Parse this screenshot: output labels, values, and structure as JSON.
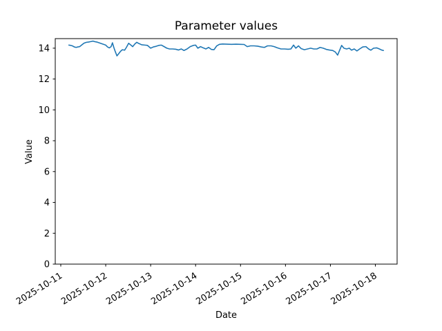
{
  "figure": {
    "background": "#ffffff"
  },
  "chart_data": {
    "type": "line",
    "title": "Parameter values",
    "xlabel": "Date",
    "ylabel": "Value",
    "line_color": "#1f77b4",
    "axis_color": "#000000",
    "grid": false,
    "legend_position": "none",
    "x_tick_labels": [
      "2025-10-11",
      "2025-10-12",
      "2025-10-13",
      "2025-10-14",
      "2025-10-15",
      "2025-10-16",
      "2025-10-17",
      "2025-10-18"
    ],
    "x_tick_days": [
      0,
      1,
      2,
      3,
      4,
      5,
      6,
      7
    ],
    "y_ticks": [
      0,
      2,
      4,
      6,
      8,
      10,
      12,
      14
    ],
    "xlim_days": [
      -0.123,
      7.484
    ],
    "ylim": [
      0,
      14.62
    ],
    "series": [
      {
        "name": "parameter-values",
        "points": [
          [
            0.18,
            14.2
          ],
          [
            0.22,
            14.18
          ],
          [
            0.26,
            14.15
          ],
          [
            0.3,
            14.08
          ],
          [
            0.34,
            14.05
          ],
          [
            0.38,
            14.08
          ],
          [
            0.42,
            14.1
          ],
          [
            0.47,
            14.22
          ],
          [
            0.52,
            14.33
          ],
          [
            0.57,
            14.38
          ],
          [
            0.62,
            14.4
          ],
          [
            0.67,
            14.43
          ],
          [
            0.72,
            14.46
          ],
          [
            0.76,
            14.42
          ],
          [
            0.8,
            14.4
          ],
          [
            0.85,
            14.35
          ],
          [
            0.9,
            14.3
          ],
          [
            0.95,
            14.25
          ],
          [
            1.0,
            14.2
          ],
          [
            1.04,
            14.08
          ],
          [
            1.08,
            14.02
          ],
          [
            1.12,
            14.1
          ],
          [
            1.15,
            14.35
          ],
          [
            1.18,
            14.05
          ],
          [
            1.21,
            13.8
          ],
          [
            1.25,
            13.5
          ],
          [
            1.29,
            13.65
          ],
          [
            1.33,
            13.8
          ],
          [
            1.37,
            13.9
          ],
          [
            1.42,
            13.87
          ],
          [
            1.46,
            14.05
          ],
          [
            1.51,
            14.32
          ],
          [
            1.56,
            14.2
          ],
          [
            1.6,
            14.1
          ],
          [
            1.65,
            14.28
          ],
          [
            1.69,
            14.38
          ],
          [
            1.74,
            14.3
          ],
          [
            1.8,
            14.22
          ],
          [
            1.87,
            14.2
          ],
          [
            1.93,
            14.18
          ],
          [
            2.0,
            14.0
          ],
          [
            2.06,
            14.08
          ],
          [
            2.12,
            14.12
          ],
          [
            2.18,
            14.18
          ],
          [
            2.24,
            14.2
          ],
          [
            2.3,
            14.1
          ],
          [
            2.36,
            14.0
          ],
          [
            2.42,
            13.95
          ],
          [
            2.49,
            13.95
          ],
          [
            2.56,
            13.93
          ],
          [
            2.62,
            13.88
          ],
          [
            2.68,
            13.95
          ],
          [
            2.74,
            13.85
          ],
          [
            2.81,
            13.95
          ],
          [
            2.88,
            14.1
          ],
          [
            2.95,
            14.18
          ],
          [
            3.0,
            14.2
          ],
          [
            3.05,
            14.0
          ],
          [
            3.11,
            14.1
          ],
          [
            3.17,
            14.02
          ],
          [
            3.23,
            13.95
          ],
          [
            3.29,
            14.05
          ],
          [
            3.35,
            13.92
          ],
          [
            3.41,
            13.9
          ],
          [
            3.47,
            14.15
          ],
          [
            3.53,
            14.25
          ],
          [
            3.6,
            14.27
          ],
          [
            3.7,
            14.26
          ],
          [
            3.8,
            14.25
          ],
          [
            3.9,
            14.26
          ],
          [
            4.0,
            14.25
          ],
          [
            4.08,
            14.24
          ],
          [
            4.15,
            14.1
          ],
          [
            4.22,
            14.15
          ],
          [
            4.3,
            14.15
          ],
          [
            4.38,
            14.13
          ],
          [
            4.46,
            14.08
          ],
          [
            4.53,
            14.05
          ],
          [
            4.6,
            14.15
          ],
          [
            4.68,
            14.15
          ],
          [
            4.75,
            14.1
          ],
          [
            4.82,
            14.02
          ],
          [
            4.9,
            13.95
          ],
          [
            4.98,
            13.95
          ],
          [
            5.06,
            13.93
          ],
          [
            5.12,
            13.95
          ],
          [
            5.18,
            14.2
          ],
          [
            5.23,
            14.0
          ],
          [
            5.29,
            14.15
          ],
          [
            5.35,
            13.97
          ],
          [
            5.42,
            13.9
          ],
          [
            5.49,
            13.95
          ],
          [
            5.56,
            14.0
          ],
          [
            5.63,
            13.95
          ],
          [
            5.7,
            13.95
          ],
          [
            5.77,
            14.05
          ],
          [
            5.84,
            14.0
          ],
          [
            5.91,
            13.92
          ],
          [
            5.98,
            13.88
          ],
          [
            6.05,
            13.85
          ],
          [
            6.11,
            13.75
          ],
          [
            6.16,
            13.55
          ],
          [
            6.21,
            13.9
          ],
          [
            6.25,
            14.18
          ],
          [
            6.3,
            14.0
          ],
          [
            6.36,
            13.95
          ],
          [
            6.42,
            14.0
          ],
          [
            6.47,
            13.87
          ],
          [
            6.53,
            13.95
          ],
          [
            6.59,
            13.82
          ],
          [
            6.65,
            13.95
          ],
          [
            6.72,
            14.08
          ],
          [
            6.79,
            14.1
          ],
          [
            6.85,
            13.95
          ],
          [
            6.9,
            13.87
          ],
          [
            6.96,
            14.0
          ],
          [
            7.03,
            14.02
          ],
          [
            7.09,
            13.95
          ],
          [
            7.14,
            13.88
          ],
          [
            7.18,
            13.85
          ]
        ]
      }
    ]
  }
}
